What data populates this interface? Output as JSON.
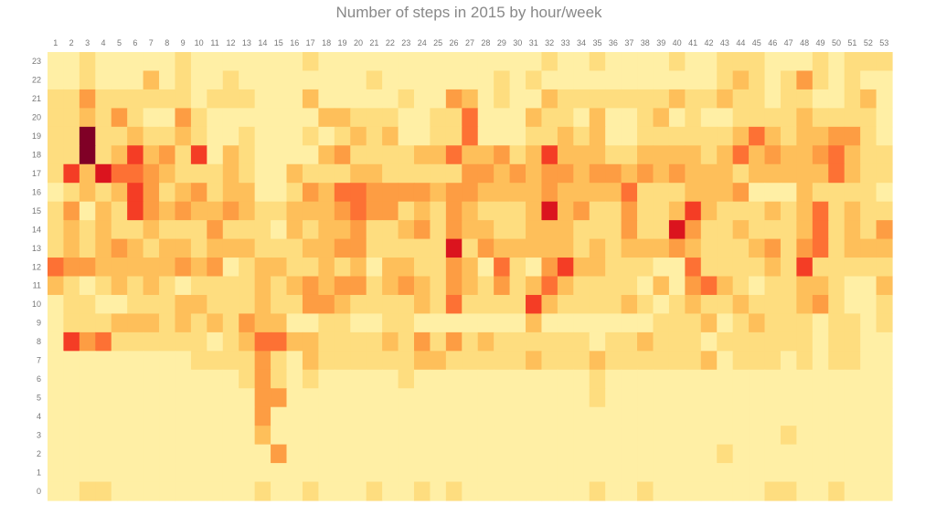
{
  "chart_data": {
    "type": "heatmap",
    "title": "Number of steps in 2015 by hour/week",
    "xlabel": "",
    "ylabel": "",
    "x": [
      1,
      2,
      3,
      4,
      5,
      6,
      7,
      8,
      9,
      10,
      11,
      12,
      13,
      14,
      15,
      16,
      17,
      18,
      19,
      20,
      21,
      22,
      23,
      24,
      25,
      26,
      27,
      28,
      29,
      30,
      31,
      32,
      33,
      34,
      35,
      36,
      37,
      38,
      39,
      40,
      41,
      42,
      43,
      44,
      45,
      46,
      47,
      48,
      49,
      50,
      51,
      52,
      53
    ],
    "y": [
      23,
      22,
      21,
      20,
      19,
      18,
      17,
      16,
      15,
      14,
      13,
      12,
      11,
      10,
      9,
      8,
      7,
      6,
      5,
      4,
      3,
      2,
      1,
      0
    ],
    "value_range": [
      0,
      9
    ],
    "colormap": "YlOrRd",
    "grid": false,
    "legend": "none",
    "values": [
      [
        1,
        1,
        2,
        1,
        1,
        1,
        1,
        1,
        2,
        1,
        1,
        1,
        1,
        1,
        1,
        1,
        2,
        1,
        1,
        1,
        1,
        1,
        1,
        1,
        1,
        1,
        1,
        1,
        1,
        1,
        1,
        2,
        1,
        1,
        2,
        1,
        1,
        1,
        1,
        2,
        1,
        1,
        2,
        2,
        2,
        1,
        1,
        1,
        2,
        1,
        2,
        2,
        2
      ],
      [
        1,
        1,
        2,
        1,
        1,
        1,
        3,
        1,
        2,
        1,
        1,
        2,
        1,
        1,
        1,
        1,
        1,
        1,
        1,
        1,
        2,
        1,
        1,
        1,
        1,
        1,
        1,
        1,
        2,
        1,
        2,
        1,
        1,
        1,
        1,
        1,
        1,
        1,
        1,
        1,
        1,
        1,
        2,
        3,
        2,
        1,
        2,
        4,
        2,
        1,
        2,
        1,
        1
      ],
      [
        2,
        2,
        4,
        2,
        2,
        2,
        2,
        2,
        2,
        1,
        2,
        2,
        2,
        1,
        1,
        1,
        3,
        1,
        1,
        1,
        1,
        1,
        2,
        1,
        1,
        4,
        3,
        1,
        2,
        1,
        1,
        3,
        2,
        2,
        2,
        2,
        2,
        2,
        2,
        3,
        2,
        2,
        3,
        2,
        2,
        1,
        2,
        2,
        1,
        1,
        2,
        3,
        1
      ],
      [
        2,
        2,
        3,
        2,
        4,
        2,
        1,
        1,
        4,
        2,
        1,
        1,
        1,
        1,
        1,
        1,
        1,
        3,
        3,
        2,
        2,
        2,
        1,
        1,
        2,
        2,
        5,
        1,
        1,
        1,
        3,
        2,
        2,
        1,
        3,
        1,
        1,
        2,
        3,
        1,
        2,
        1,
        1,
        2,
        2,
        2,
        2,
        3,
        2,
        2,
        2,
        2,
        1
      ],
      [
        2,
        2,
        9,
        2,
        2,
        3,
        2,
        2,
        3,
        2,
        1,
        1,
        2,
        1,
        1,
        1,
        2,
        1,
        2,
        3,
        2,
        3,
        1,
        1,
        2,
        2,
        5,
        1,
        1,
        1,
        2,
        2,
        3,
        2,
        3,
        1,
        1,
        2,
        2,
        2,
        2,
        2,
        2,
        3,
        5,
        3,
        2,
        3,
        3,
        4,
        4,
        2,
        1
      ],
      [
        2,
        2,
        9,
        2,
        3,
        6,
        3,
        4,
        2,
        6,
        1,
        3,
        2,
        1,
        1,
        1,
        1,
        3,
        4,
        2,
        2,
        2,
        2,
        3,
        3,
        5,
        3,
        3,
        4,
        2,
        3,
        6,
        3,
        3,
        3,
        2,
        2,
        3,
        3,
        3,
        3,
        2,
        3,
        5,
        3,
        4,
        3,
        3,
        4,
        5,
        3,
        2,
        2
      ],
      [
        2,
        6,
        3,
        7,
        5,
        5,
        4,
        3,
        2,
        2,
        2,
        3,
        2,
        1,
        1,
        3,
        2,
        2,
        2,
        3,
        3,
        2,
        2,
        2,
        2,
        2,
        4,
        4,
        3,
        4,
        3,
        4,
        4,
        3,
        4,
        4,
        3,
        4,
        3,
        4,
        3,
        3,
        3,
        2,
        3,
        3,
        3,
        3,
        3,
        5,
        3,
        2,
        2
      ],
      [
        1,
        2,
        3,
        2,
        3,
        6,
        4,
        2,
        3,
        4,
        2,
        3,
        3,
        1,
        1,
        2,
        4,
        3,
        5,
        5,
        4,
        4,
        4,
        4,
        3,
        4,
        4,
        3,
        3,
        3,
        3,
        4,
        3,
        3,
        3,
        3,
        5,
        2,
        2,
        2,
        3,
        3,
        3,
        4,
        1,
        1,
        1,
        3,
        2,
        2,
        2,
        2,
        1
      ],
      [
        2,
        4,
        1,
        3,
        2,
        6,
        4,
        3,
        4,
        3,
        3,
        4,
        3,
        2,
        2,
        3,
        3,
        3,
        4,
        5,
        4,
        4,
        2,
        3,
        2,
        4,
        3,
        2,
        2,
        2,
        3,
        7,
        3,
        4,
        2,
        2,
        4,
        2,
        2,
        3,
        6,
        3,
        2,
        2,
        2,
        3,
        2,
        3,
        5,
        2,
        3,
        2,
        2
      ],
      [
        2,
        3,
        2,
        3,
        2,
        2,
        3,
        2,
        2,
        2,
        4,
        2,
        2,
        2,
        1,
        3,
        2,
        3,
        3,
        4,
        2,
        2,
        3,
        4,
        2,
        4,
        3,
        3,
        2,
        2,
        3,
        3,
        3,
        2,
        2,
        2,
        4,
        2,
        2,
        7,
        4,
        2,
        2,
        3,
        2,
        2,
        2,
        3,
        5,
        2,
        3,
        2,
        4
      ],
      [
        2,
        3,
        2,
        3,
        4,
        3,
        2,
        3,
        3,
        2,
        3,
        3,
        3,
        2,
        2,
        2,
        3,
        3,
        4,
        4,
        2,
        2,
        2,
        2,
        2,
        7,
        2,
        4,
        3,
        3,
        3,
        3,
        3,
        2,
        3,
        2,
        3,
        3,
        3,
        4,
        3,
        2,
        2,
        2,
        3,
        4,
        2,
        4,
        5,
        2,
        3,
        3,
        3
      ],
      [
        5,
        4,
        4,
        3,
        3,
        3,
        3,
        3,
        4,
        3,
        4,
        1,
        2,
        3,
        3,
        2,
        2,
        3,
        2,
        3,
        1,
        3,
        3,
        2,
        2,
        4,
        3,
        1,
        5,
        2,
        1,
        4,
        6,
        3,
        3,
        2,
        2,
        2,
        1,
        1,
        5,
        2,
        2,
        2,
        2,
        3,
        2,
        6,
        2,
        2,
        2,
        2,
        2
      ],
      [
        3,
        2,
        1,
        2,
        3,
        2,
        3,
        2,
        1,
        2,
        2,
        2,
        2,
        3,
        2,
        3,
        4,
        3,
        4,
        4,
        2,
        3,
        4,
        3,
        2,
        4,
        3,
        2,
        4,
        2,
        3,
        5,
        3,
        2,
        2,
        2,
        2,
        1,
        3,
        1,
        4,
        5,
        3,
        2,
        1,
        2,
        2,
        3,
        3,
        2,
        1,
        1,
        3
      ],
      [
        1,
        2,
        2,
        1,
        1,
        2,
        2,
        2,
        3,
        3,
        2,
        2,
        2,
        3,
        2,
        2,
        4,
        4,
        3,
        2,
        2,
        2,
        2,
        3,
        2,
        5,
        2,
        2,
        2,
        2,
        6,
        3,
        2,
        2,
        2,
        2,
        3,
        2,
        1,
        2,
        3,
        2,
        2,
        3,
        2,
        2,
        2,
        3,
        4,
        2,
        1,
        1,
        2
      ],
      [
        1,
        2,
        2,
        2,
        3,
        3,
        3,
        2,
        3,
        2,
        3,
        2,
        4,
        3,
        3,
        1,
        1,
        2,
        2,
        1,
        1,
        2,
        2,
        1,
        1,
        1,
        1,
        1,
        1,
        1,
        3,
        1,
        1,
        1,
        1,
        1,
        1,
        1,
        2,
        2,
        2,
        3,
        1,
        2,
        3,
        2,
        2,
        2,
        1,
        2,
        2,
        1,
        2
      ],
      [
        1,
        6,
        4,
        5,
        2,
        2,
        2,
        2,
        2,
        2,
        1,
        2,
        3,
        5,
        5,
        3,
        3,
        2,
        2,
        2,
        2,
        3,
        2,
        4,
        2,
        4,
        2,
        3,
        2,
        2,
        2,
        2,
        2,
        2,
        1,
        2,
        2,
        3,
        2,
        2,
        2,
        1,
        2,
        2,
        2,
        2,
        2,
        2,
        1,
        2,
        2,
        1,
        1
      ],
      [
        1,
        1,
        1,
        1,
        1,
        1,
        1,
        1,
        1,
        2,
        2,
        2,
        2,
        4,
        2,
        1,
        3,
        2,
        2,
        2,
        2,
        2,
        2,
        3,
        3,
        2,
        2,
        2,
        2,
        2,
        3,
        2,
        2,
        2,
        3,
        2,
        2,
        2,
        2,
        2,
        2,
        3,
        1,
        2,
        2,
        2,
        1,
        2,
        1,
        2,
        2,
        1,
        1
      ],
      [
        1,
        1,
        1,
        1,
        1,
        1,
        1,
        1,
        1,
        1,
        1,
        1,
        2,
        4,
        2,
        1,
        2,
        1,
        1,
        1,
        1,
        1,
        2,
        1,
        1,
        1,
        1,
        1,
        1,
        1,
        1,
        1,
        1,
        1,
        2,
        1,
        1,
        1,
        1,
        1,
        1,
        1,
        1,
        1,
        1,
        1,
        1,
        1,
        1,
        1,
        1,
        1,
        1
      ],
      [
        1,
        1,
        1,
        1,
        1,
        1,
        1,
        1,
        1,
        1,
        1,
        1,
        1,
        4,
        4,
        1,
        1,
        1,
        1,
        1,
        1,
        1,
        1,
        1,
        1,
        1,
        1,
        1,
        1,
        1,
        1,
        1,
        1,
        1,
        2,
        1,
        1,
        1,
        1,
        1,
        1,
        1,
        1,
        1,
        1,
        1,
        1,
        1,
        1,
        1,
        1,
        1,
        1
      ],
      [
        1,
        1,
        1,
        1,
        1,
        1,
        1,
        1,
        1,
        1,
        1,
        1,
        1,
        4,
        1,
        1,
        1,
        1,
        1,
        1,
        1,
        1,
        1,
        1,
        1,
        1,
        1,
        1,
        1,
        1,
        1,
        1,
        1,
        1,
        1,
        1,
        1,
        1,
        1,
        1,
        1,
        1,
        1,
        1,
        1,
        1,
        1,
        1,
        1,
        1,
        1,
        1,
        1
      ],
      [
        1,
        1,
        1,
        1,
        1,
        1,
        1,
        1,
        1,
        1,
        1,
        1,
        1,
        3,
        1,
        1,
        1,
        1,
        1,
        1,
        1,
        1,
        1,
        1,
        1,
        1,
        1,
        1,
        1,
        1,
        1,
        1,
        1,
        1,
        1,
        1,
        1,
        1,
        1,
        1,
        1,
        1,
        1,
        1,
        1,
        1,
        2,
        1,
        1,
        1,
        1,
        1,
        1
      ],
      [
        1,
        1,
        1,
        1,
        1,
        1,
        1,
        1,
        1,
        1,
        1,
        1,
        1,
        1,
        4,
        1,
        1,
        1,
        1,
        1,
        1,
        1,
        1,
        1,
        1,
        1,
        1,
        1,
        1,
        1,
        1,
        1,
        1,
        1,
        1,
        1,
        1,
        1,
        1,
        1,
        1,
        1,
        2,
        1,
        1,
        1,
        1,
        1,
        1,
        1,
        1,
        1,
        1
      ],
      [
        1,
        1,
        1,
        1,
        1,
        1,
        1,
        1,
        1,
        1,
        1,
        1,
        1,
        1,
        1,
        1,
        1,
        1,
        1,
        1,
        1,
        1,
        1,
        1,
        1,
        1,
        1,
        1,
        1,
        1,
        1,
        1,
        1,
        1,
        1,
        1,
        1,
        1,
        1,
        1,
        1,
        1,
        1,
        1,
        1,
        1,
        1,
        1,
        1,
        1,
        1,
        1,
        1
      ],
      [
        1,
        1,
        2,
        2,
        1,
        1,
        1,
        1,
        1,
        1,
        1,
        1,
        1,
        2,
        1,
        1,
        2,
        1,
        1,
        1,
        2,
        1,
        1,
        2,
        1,
        2,
        1,
        1,
        1,
        1,
        1,
        1,
        1,
        1,
        2,
        1,
        1,
        2,
        1,
        1,
        1,
        1,
        1,
        1,
        1,
        2,
        2,
        1,
        1,
        2,
        1,
        1,
        1
      ]
    ]
  }
}
